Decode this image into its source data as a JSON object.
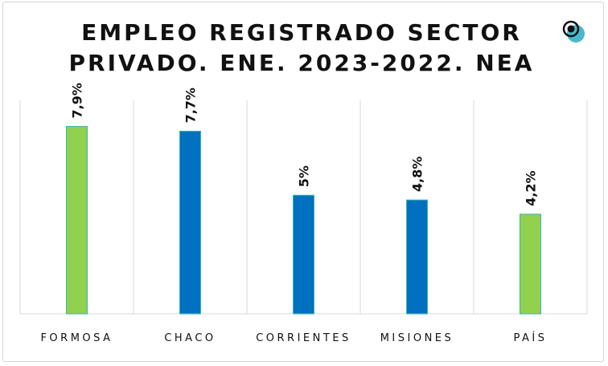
{
  "chart_data": {
    "type": "bar",
    "title": "EMPLEO REGISTRADO SECTOR PRIVADO. ENE. 2023-2022. NEA",
    "title_lines": [
      "EMPLEO REGISTRADO SECTOR",
      "PRIVADO. ENE. 2023-2022. NEA"
    ],
    "categories": [
      "FORMOSA",
      "CHACO",
      "CORRIENTES",
      "MISIONES",
      "PAÍS"
    ],
    "values": [
      7.9,
      7.7,
      5.0,
      4.8,
      4.2
    ],
    "data_labels": [
      "7,9%",
      "7,7%",
      "5%",
      "4,8%",
      "4,2%"
    ],
    "colors": [
      "#92d050",
      "#0070c0",
      "#0070c0",
      "#0070c0",
      "#92d050"
    ],
    "xlabel": "",
    "ylabel": "",
    "ylim": [
      0,
      9
    ],
    "grid": "vertical separators",
    "legend": "none"
  },
  "logo": {
    "icon": "target-logo-icon"
  }
}
